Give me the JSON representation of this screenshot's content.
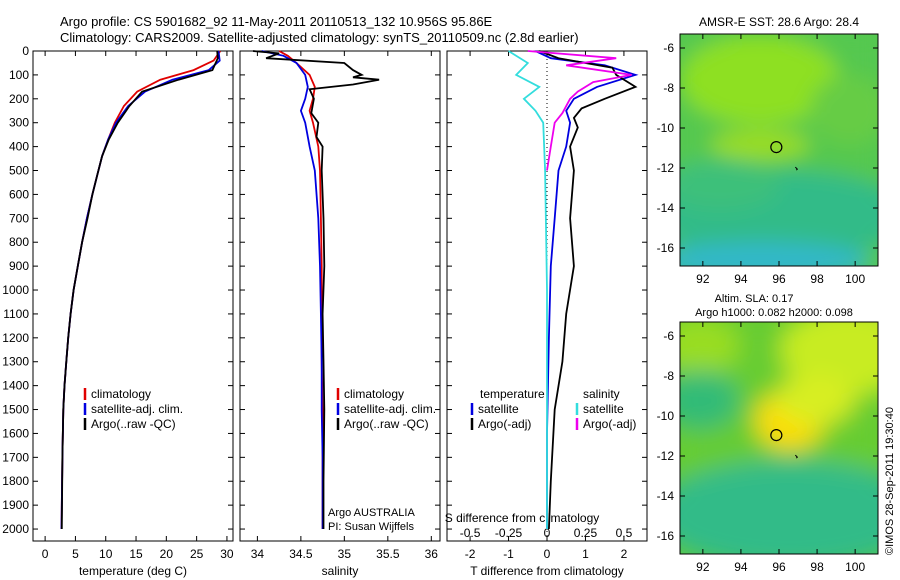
{
  "header": {
    "title_line1": "Argo profile: CS 5901682_92 11-May-2011 20110513_132 10.956S 95.86E",
    "title_line2": "Climatology: CARS2009. Satellite-adjusted climatology: synTS_20110509.nc (2.8d earlier)"
  },
  "right": {
    "map1_title": "AMSR-E SST: 28.6 Argo: 28.4",
    "map2_title1": "Altim. SLA: 0.17",
    "map2_title2": "Argo h1000: 0.082 h2000: 0.098",
    "footer_vertical": "©IMOS 28-Sep-2011 19:30:40"
  },
  "colors": {
    "climatology": "#e00000",
    "satellite_adj": "#0000e0",
    "argo": "#000000",
    "salinity_satellite": "#33dddd",
    "salinity_argo": "#ee00ee"
  },
  "chart_data": [
    {
      "type": "line",
      "xlabel": "temperature (deg C)",
      "ylim": [
        0,
        2050
      ],
      "xlim": [
        -2,
        31
      ],
      "xticks": [
        0,
        5,
        10,
        15,
        20,
        25,
        30
      ],
      "yticks": [
        0,
        100,
        200,
        300,
        400,
        500,
        600,
        700,
        800,
        900,
        1000,
        1100,
        1200,
        1300,
        1400,
        1500,
        1600,
        1700,
        1800,
        1900,
        2000
      ],
      "legend": [
        "climatology",
        "satellite-adj. clim.",
        "Argo(..raw -QC)"
      ],
      "series": [
        {
          "name": "climatology",
          "x": [
            28.9,
            27.8,
            24.5,
            19,
            15.2,
            13,
            11.5,
            10.4,
            9.4,
            8.6,
            7.8,
            6.9,
            6.1,
            5.4,
            4.7,
            4.2,
            3.8,
            3.5,
            3.2,
            3,
            2.85,
            2.7
          ],
          "y": [
            0,
            40,
            80,
            120,
            170,
            230,
            300,
            370,
            440,
            520,
            600,
            700,
            800,
            900,
            1000,
            1100,
            1200,
            1300,
            1400,
            1500,
            1700,
            2000
          ]
        },
        {
          "name": "satellite-adj. clim.",
          "x": [
            28.6,
            28.8,
            27,
            21,
            16.5,
            13.7,
            11.7,
            10.4,
            9.4,
            8.6,
            7.8,
            6.9,
            6.1,
            5.4,
            4.7,
            4.2,
            3.8,
            3.5,
            3.2,
            3,
            2.85,
            2.7
          ],
          "y": [
            0,
            40,
            80,
            120,
            170,
            230,
            300,
            370,
            440,
            520,
            600,
            700,
            800,
            900,
            1000,
            1100,
            1200,
            1300,
            1400,
            1500,
            1700,
            2000
          ]
        },
        {
          "name": "Argo(..raw -QC)",
          "x": [
            28.4,
            28.5,
            27.6,
            22,
            16,
            13.9,
            12,
            10.5,
            9.4,
            8.6,
            7.8,
            7,
            6.1,
            5.4,
            4.7,
            4.2,
            3.8,
            3.5,
            3.2,
            3,
            2.85,
            2.75
          ],
          "y": [
            0,
            30,
            80,
            120,
            170,
            230,
            300,
            370,
            440,
            520,
            600,
            700,
            800,
            900,
            1000,
            1100,
            1200,
            1300,
            1400,
            1500,
            1700,
            2000
          ]
        }
      ]
    },
    {
      "type": "line",
      "xlabel": "salinity",
      "ylim": [
        0,
        2050
      ],
      "xlim": [
        33.8,
        36.1
      ],
      "xticks": [
        34,
        34.5,
        35,
        35.5,
        36
      ],
      "legend": [
        "climatology",
        "satellite-adj. clim.",
        "Argo(..raw -QC)"
      ],
      "annotation": [
        "Argo AUSTRALIA",
        "PI: Susan Wijffels"
      ],
      "series": [
        {
          "name": "climatology",
          "x": [
            34.25,
            34.35,
            34.45,
            34.6,
            34.66,
            34.64,
            34.6,
            34.64,
            34.7,
            34.72,
            34.73,
            34.74,
            34.74,
            34.74,
            34.75,
            34.75,
            34.75
          ],
          "y": [
            0,
            20,
            50,
            100,
            150,
            200,
            250,
            300,
            400,
            500,
            700,
            900,
            1100,
            1300,
            1500,
            1700,
            2000
          ]
        },
        {
          "name": "satellite-adj. clim.",
          "x": [
            34.05,
            34.3,
            34.45,
            34.55,
            34.58,
            34.55,
            34.5,
            34.55,
            34.6,
            34.66,
            34.7,
            34.72,
            34.73,
            34.74,
            34.74,
            34.75,
            34.75
          ],
          "y": [
            0,
            20,
            50,
            100,
            150,
            200,
            250,
            300,
            400,
            500,
            700,
            900,
            1100,
            1300,
            1500,
            1700,
            2000
          ]
        },
        {
          "name": "Argo(..raw -QC)",
          "x": [
            33.95,
            34.25,
            34.1,
            35,
            35.1,
            35.2,
            35.1,
            35.4,
            35.1,
            34.6,
            34.65,
            34.62,
            34.7,
            34.68,
            34.75,
            34.74,
            34.76,
            34.77,
            34.75,
            34.76,
            34.77,
            34.76,
            34.76
          ],
          "y": [
            0,
            10,
            30,
            50,
            80,
            100,
            110,
            120,
            140,
            160,
            200,
            260,
            300,
            360,
            400,
            500,
            700,
            900,
            1100,
            1300,
            1500,
            1800,
            2000
          ]
        }
      ]
    },
    {
      "type": "line",
      "xlabel": "T difference from climatology",
      "xlabel_top": "S difference from climatology",
      "ylim": [
        0,
        2050
      ],
      "xlim": [
        -2.6,
        2.6
      ],
      "xticks_T": [
        -2,
        -1,
        0,
        1,
        2
      ],
      "xticks_S": [
        "-0.5",
        "-0.25",
        "0",
        "0.25",
        "0.5"
      ],
      "legend": [
        "temperature",
        "satellite",
        "Argo(-adj)",
        "salinity",
        "satellite",
        "Argo(-adj)"
      ],
      "series": [
        {
          "name": "temperature satellite",
          "x": [
            -0.3,
            0.1,
            1.5,
            2.3,
            1.3,
            0.7,
            0.5,
            0.6,
            0.5,
            0.3,
            0.2,
            0.1,
            0.05,
            0,
            0
          ],
          "y": [
            0,
            30,
            60,
            100,
            150,
            200,
            250,
            300,
            400,
            500,
            700,
            900,
            1200,
            1600,
            2000
          ]
        },
        {
          "name": "temperature Argo(-adj)",
          "x": [
            -0.2,
            0.3,
            1.7,
            1.8,
            2.3,
            1.5,
            0.9,
            0.7,
            0.8,
            0.6,
            0.7,
            0.6,
            0.7,
            0.5,
            0.4,
            0.2,
            0.1,
            0.05
          ],
          "y": [
            0,
            30,
            70,
            100,
            150,
            200,
            240,
            280,
            320,
            400,
            500,
            700,
            900,
            1100,
            1300,
            1500,
            1800,
            2000
          ]
        },
        {
          "name": "salinity satellite",
          "x": [
            -1,
            -0.5,
            -0.8,
            -0.2,
            -0.6,
            -0.3,
            -0.1,
            -0.05,
            0,
            0
          ],
          "y": [
            0,
            50,
            100,
            150,
            200,
            250,
            300,
            500,
            1000,
            2000
          ]
        },
        {
          "name": "salinity Argo(-adj)",
          "x": [
            -0.5,
            1.8,
            0.5,
            2.2,
            1.2,
            0.8,
            0.6,
            0.4,
            0.2,
            0.1,
            0
          ],
          "y": [
            0,
            30,
            60,
            100,
            130,
            170,
            200,
            260,
            300,
            400,
            500
          ]
        }
      ]
    },
    {
      "type": "heatmap",
      "title": "AMSR-E SST: 28.6 Argo: 28.4",
      "xlim": [
        90.8,
        101.2
      ],
      "ylim": [
        -16.9,
        -5.3
      ],
      "xticks": [
        92,
        94,
        96,
        98,
        100
      ],
      "yticks": [
        -6,
        -8,
        -10,
        -12,
        -14,
        -16
      ],
      "marker": {
        "lon": 95.86,
        "lat": -10.956
      }
    },
    {
      "type": "heatmap",
      "title": "Altim. SLA: 0.17",
      "subtitle": "Argo h1000: 0.082 h2000: 0.098",
      "xlim": [
        90.8,
        101.2
      ],
      "ylim": [
        -16.9,
        -5.3
      ],
      "xticks": [
        92,
        94,
        96,
        98,
        100
      ],
      "yticks": [
        -6,
        -8,
        -10,
        -12,
        -14,
        -16
      ],
      "marker": {
        "lon": 95.86,
        "lat": -10.956
      }
    }
  ]
}
